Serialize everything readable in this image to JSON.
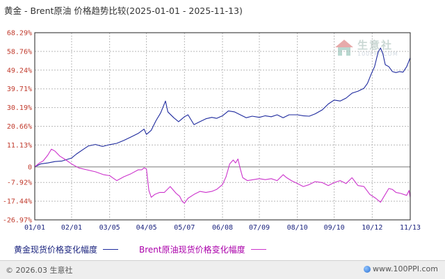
{
  "title": "黄金 - Brent原油 价格趋势比较(2025-01-01 - 2025-11-13)",
  "watermark": {
    "name": "生意社",
    "url": "100PPI.COM"
  },
  "legend": {
    "gold": "黄金现货价格变化幅度",
    "brent": "Brent原油现货价格变化幅度"
  },
  "footer": {
    "copyright": "© 2026.03 生意社",
    "site": "www.100PPI.com"
  },
  "colors": {
    "gold": "#1e2a9e",
    "brent": "#cc33cc",
    "ytick": "#c0392b",
    "xtick": "#1a237e",
    "grid": "#b8b8b8",
    "zero_line": "#777777"
  },
  "chart_data": {
    "type": "line",
    "title": "黄金 - Brent原油 价格趋势比较(2025-01-01 - 2025-11-13)",
    "xlabel": "",
    "ylabel": "",
    "unit": "%",
    "ylim": [
      -26.97,
      68.29
    ],
    "yticks": [
      68.29,
      58.76,
      49.24,
      39.71,
      30.19,
      20.66,
      11.13,
      0,
      -7.92,
      -17.44,
      -26.97
    ],
    "ytick_labels": [
      "68.29%",
      "58.76%",
      "49.24%",
      "39.71%",
      "30.19%",
      "20.66%",
      "11.13%",
      "0",
      "-7.92%",
      "-17.44%",
      "-26.97%"
    ],
    "xticks": [
      "2025-01-01",
      "2025-02-01",
      "2025-03-05",
      "2025-04-05",
      "2025-05-07",
      "2025-06-08",
      "2025-07-09",
      "2025-08-10",
      "2025-09-10",
      "2025-10-12",
      "2025-11-13"
    ],
    "xtick_labels": [
      "01/01",
      "02/01",
      "03/05",
      "04/05",
      "05/07",
      "06/08",
      "07/09",
      "08/10",
      "09/10",
      "10/12",
      "11/13"
    ],
    "grid": true,
    "legend_position": "bottom",
    "series": [
      {
        "name": "黄金现货价格变化幅度",
        "color": "#1e2a9e",
        "points": [
          [
            "2025-01-01",
            0
          ],
          [
            "2025-01-06",
            1.5
          ],
          [
            "2025-01-12",
            2.0
          ],
          [
            "2025-01-18",
            2.7
          ],
          [
            "2025-01-24",
            3.0
          ],
          [
            "2025-02-01",
            4.5
          ],
          [
            "2025-02-05",
            6.5
          ],
          [
            "2025-02-11",
            9.0
          ],
          [
            "2025-02-15",
            10.6
          ],
          [
            "2025-02-21",
            11.4
          ],
          [
            "2025-02-27",
            10.4
          ],
          [
            "2025-03-05",
            11.3
          ],
          [
            "2025-03-11",
            12.0
          ],
          [
            "2025-03-17",
            13.5
          ],
          [
            "2025-03-23",
            15.2
          ],
          [
            "2025-03-29",
            17.0
          ],
          [
            "2025-04-03",
            19.2
          ],
          [
            "2025-04-05",
            16.5
          ],
          [
            "2025-04-09",
            18.6
          ],
          [
            "2025-04-13",
            23.5
          ],
          [
            "2025-04-17",
            27.5
          ],
          [
            "2025-04-21",
            33.5
          ],
          [
            "2025-04-23",
            28.0
          ],
          [
            "2025-04-28",
            25.0
          ],
          [
            "2025-05-02",
            23.0
          ],
          [
            "2025-05-07",
            25.5
          ],
          [
            "2025-05-10",
            26.5
          ],
          [
            "2025-05-15",
            21.5
          ],
          [
            "2025-05-20",
            23.0
          ],
          [
            "2025-05-25",
            24.5
          ],
          [
            "2025-05-30",
            25.2
          ],
          [
            "2025-06-03",
            24.7
          ],
          [
            "2025-06-08",
            26.0
          ],
          [
            "2025-06-13",
            28.5
          ],
          [
            "2025-06-18",
            28.0
          ],
          [
            "2025-06-23",
            26.5
          ],
          [
            "2025-06-28",
            25.0
          ],
          [
            "2025-07-03",
            25.8
          ],
          [
            "2025-07-09",
            25.2
          ],
          [
            "2025-07-14",
            26.0
          ],
          [
            "2025-07-19",
            25.5
          ],
          [
            "2025-07-24",
            26.5
          ],
          [
            "2025-07-29",
            25.0
          ],
          [
            "2025-08-03",
            26.5
          ],
          [
            "2025-08-10",
            26.5
          ],
          [
            "2025-08-15",
            26.0
          ],
          [
            "2025-08-20",
            25.8
          ],
          [
            "2025-08-25",
            27.0
          ],
          [
            "2025-08-31",
            29.0
          ],
          [
            "2025-09-05",
            32.0
          ],
          [
            "2025-09-10",
            34.0
          ],
          [
            "2025-09-15",
            33.5
          ],
          [
            "2025-09-20",
            35.0
          ],
          [
            "2025-09-25",
            37.5
          ],
          [
            "2025-09-30",
            38.5
          ],
          [
            "2025-10-05",
            40.0
          ],
          [
            "2025-10-08",
            42.5
          ],
          [
            "2025-10-11",
            47.0
          ],
          [
            "2025-10-14",
            51.0
          ],
          [
            "2025-10-17",
            58.5
          ],
          [
            "2025-10-19",
            60.5
          ],
          [
            "2025-10-21",
            57.5
          ],
          [
            "2025-10-23",
            52.0
          ],
          [
            "2025-10-26",
            51.0
          ],
          [
            "2025-10-29",
            48.5
          ],
          [
            "2025-11-01",
            48.0
          ],
          [
            "2025-11-04",
            48.5
          ],
          [
            "2025-11-07",
            48.2
          ],
          [
            "2025-11-10",
            51.0
          ],
          [
            "2025-11-13",
            55.5
          ]
        ]
      },
      {
        "name": "Brent原油现货价格变化幅度",
        "color": "#cc33cc",
        "points": [
          [
            "2025-01-01",
            0
          ],
          [
            "2025-01-05",
            2.0
          ],
          [
            "2025-01-08",
            3.0
          ],
          [
            "2025-01-12",
            6.0
          ],
          [
            "2025-01-15",
            9.0
          ],
          [
            "2025-01-18",
            8.0
          ],
          [
            "2025-01-22",
            5.5
          ],
          [
            "2025-01-26",
            4.0
          ],
          [
            "2025-02-01",
            1.5
          ],
          [
            "2025-02-07",
            -0.5
          ],
          [
            "2025-02-14",
            -1.5
          ],
          [
            "2025-02-21",
            -2.5
          ],
          [
            "2025-02-28",
            -4.0
          ],
          [
            "2025-03-05",
            -4.5
          ],
          [
            "2025-03-11",
            -7.0
          ],
          [
            "2025-03-17",
            -5.0
          ],
          [
            "2025-03-23",
            -3.5
          ],
          [
            "2025-03-29",
            -1.5
          ],
          [
            "2025-04-01",
            -1.5
          ],
          [
            "2025-04-03",
            -0.5
          ],
          [
            "2025-04-05",
            -1.0
          ],
          [
            "2025-04-07",
            -12.0
          ],
          [
            "2025-04-09",
            -15.5
          ],
          [
            "2025-04-12",
            -14.0
          ],
          [
            "2025-04-16",
            -13.0
          ],
          [
            "2025-04-20",
            -13.0
          ],
          [
            "2025-04-25",
            -10.0
          ],
          [
            "2025-04-30",
            -13.5
          ],
          [
            "2025-05-03",
            -15.0
          ],
          [
            "2025-05-05",
            -17.5
          ],
          [
            "2025-05-07",
            -18.5
          ],
          [
            "2025-05-10",
            -16.0
          ],
          [
            "2025-05-15",
            -14.0
          ],
          [
            "2025-05-20",
            -12.5
          ],
          [
            "2025-05-25",
            -13.0
          ],
          [
            "2025-05-30",
            -12.5
          ],
          [
            "2025-06-03",
            -11.5
          ],
          [
            "2025-06-08",
            -9.0
          ],
          [
            "2025-06-11",
            -5.0
          ],
          [
            "2025-06-14",
            1.5
          ],
          [
            "2025-06-17",
            3.5
          ],
          [
            "2025-06-19",
            2.0
          ],
          [
            "2025-06-21",
            4.0
          ],
          [
            "2025-06-23",
            -1.0
          ],
          [
            "2025-06-25",
            -5.5
          ],
          [
            "2025-06-29",
            -7.0
          ],
          [
            "2025-07-04",
            -6.5
          ],
          [
            "2025-07-09",
            -6.0
          ],
          [
            "2025-07-14",
            -6.5
          ],
          [
            "2025-07-19",
            -6.0
          ],
          [
            "2025-07-24",
            -7.0
          ],
          [
            "2025-07-29",
            -4.0
          ],
          [
            "2025-08-01",
            -5.5
          ],
          [
            "2025-08-05",
            -7.0
          ],
          [
            "2025-08-10",
            -8.5
          ],
          [
            "2025-08-15",
            -10.0
          ],
          [
            "2025-08-20",
            -9.0
          ],
          [
            "2025-08-25",
            -7.5
          ],
          [
            "2025-08-31",
            -8.0
          ],
          [
            "2025-09-05",
            -9.5
          ],
          [
            "2025-09-10",
            -8.0
          ],
          [
            "2025-09-15",
            -7.0
          ],
          [
            "2025-09-20",
            -8.5
          ],
          [
            "2025-09-25",
            -5.5
          ],
          [
            "2025-09-30",
            -9.5
          ],
          [
            "2025-10-05",
            -10.0
          ],
          [
            "2025-10-10",
            -14.0
          ],
          [
            "2025-10-15",
            -16.0
          ],
          [
            "2025-10-19",
            -18.0
          ],
          [
            "2025-10-22",
            -15.0
          ],
          [
            "2025-10-26",
            -11.0
          ],
          [
            "2025-10-29",
            -11.5
          ],
          [
            "2025-11-01",
            -13.0
          ],
          [
            "2025-11-05",
            -13.5
          ],
          [
            "2025-11-10",
            -14.5
          ],
          [
            "2025-11-12",
            -12.0
          ],
          [
            "2025-11-13",
            -15.5
          ]
        ]
      }
    ]
  }
}
